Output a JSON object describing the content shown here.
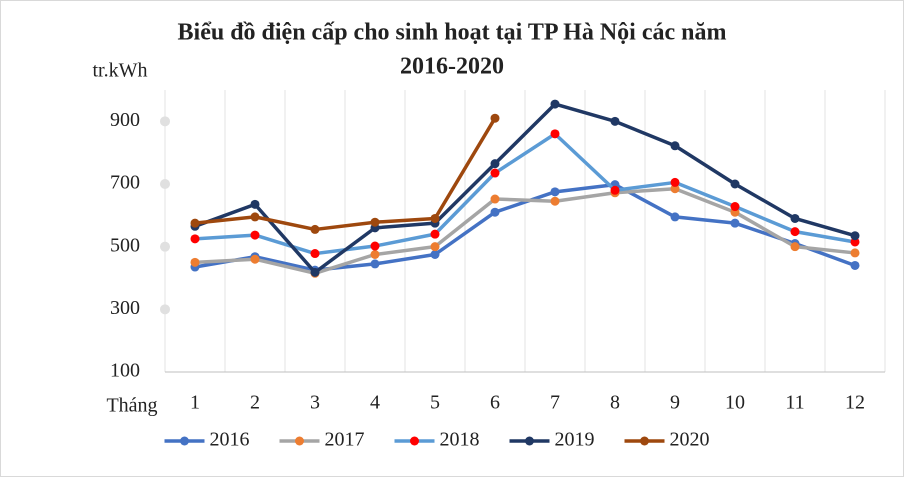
{
  "chart_data": {
    "type": "line",
    "title": [
      "Biểu đồ điện cấp cho sinh hoạt tại TP Hà Nội các năm",
      "2016-2020"
    ],
    "y_label": "tr.kWh",
    "x_label": "Tháng",
    "categories": [
      "1",
      "2",
      "3",
      "4",
      "5",
      "6",
      "7",
      "8",
      "9",
      "10",
      "11",
      "12"
    ],
    "series": [
      {
        "name": "2016",
        "color": "#4472c4",
        "marker_color": "#4472c4",
        "values": [
          435,
          468,
          425,
          445,
          475,
          610,
          675,
          698,
          595,
          575,
          510,
          440
        ]
      },
      {
        "name": "2017",
        "color": "#a5a5a5",
        "marker_color": "#ed7d31",
        "values": [
          450,
          460,
          415,
          475,
          500,
          652,
          645,
          672,
          685,
          610,
          500,
          480
        ]
      },
      {
        "name": "2018",
        "color": "#5b9bd5",
        "marker_color": "#ff0000",
        "values": [
          525,
          537,
          478,
          502,
          540,
          735,
          860,
          680,
          705,
          628,
          548,
          515
        ]
      },
      {
        "name": "2019",
        "color": "#203864",
        "marker_color": "#203864",
        "values": [
          565,
          635,
          418,
          560,
          575,
          765,
          955,
          900,
          822,
          700,
          590,
          535
        ]
      },
      {
        "name": "2020",
        "color": "#9e480e",
        "marker_color": "#9e480e",
        "values": [
          575,
          595,
          555,
          578,
          590,
          910,
          null,
          null,
          null,
          null,
          null,
          null
        ]
      }
    ],
    "ylim": [
      100,
      1000
    ],
    "yticks": [
      100,
      300,
      500,
      700,
      900
    ],
    "legend": "bottom"
  }
}
